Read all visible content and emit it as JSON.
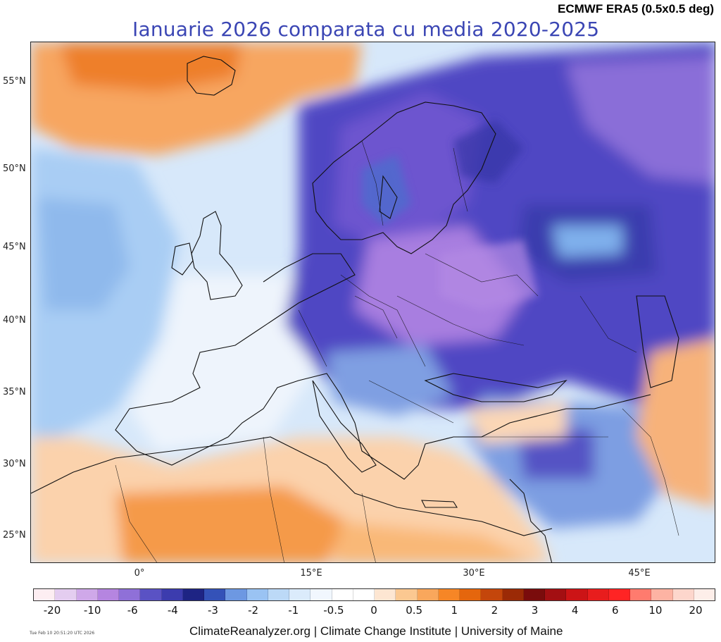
{
  "header": {
    "source": "ECMWF ERA5 (0.5x0.5 deg)",
    "title": "Ianuarie 2026 comparata cu media 2020-2025"
  },
  "axes": {
    "lat_labels": [
      "55°N",
      "50°N",
      "45°N",
      "40°N",
      "35°N",
      "30°N",
      "25°N"
    ],
    "lon_labels": [
      "0°",
      "15°E",
      "30°E",
      "45°E"
    ]
  },
  "colorbar": {
    "labels": [
      "-20",
      "-10",
      "-6",
      "-4",
      "-3",
      "-2",
      "-1",
      "-0.5",
      "0",
      "0.5",
      "1",
      "2",
      "3",
      "4",
      "6",
      "10",
      "20"
    ],
    "colors": [
      "#fdeef2",
      "#e4cdf0",
      "#cfa8e9",
      "#b585e0",
      "#8f70d8",
      "#5a52c4",
      "#3c3cae",
      "#1e2484",
      "#3452b8",
      "#6d98e2",
      "#9ac3f3",
      "#bcd9f7",
      "#dbebfb",
      "#f1f7fe",
      "#ffffff",
      "#ffffff",
      "#fde6d2",
      "#fbc891",
      "#f9a75c",
      "#f68626",
      "#e5660d",
      "#c4460b",
      "#9b2a06",
      "#7a0c0c",
      "#a30f12",
      "#cc1416",
      "#e81d1d",
      "#ff2424",
      "#ff7b6e",
      "#fdb3a3",
      "#fdd6cc",
      "#fdeee9"
    ]
  },
  "footer": {
    "credit": "ClimateReanalyzer.org | Climate Change Institute | University of Maine",
    "timestamp": "Tue Feb 10 20:51:20 UTC 2026"
  }
}
